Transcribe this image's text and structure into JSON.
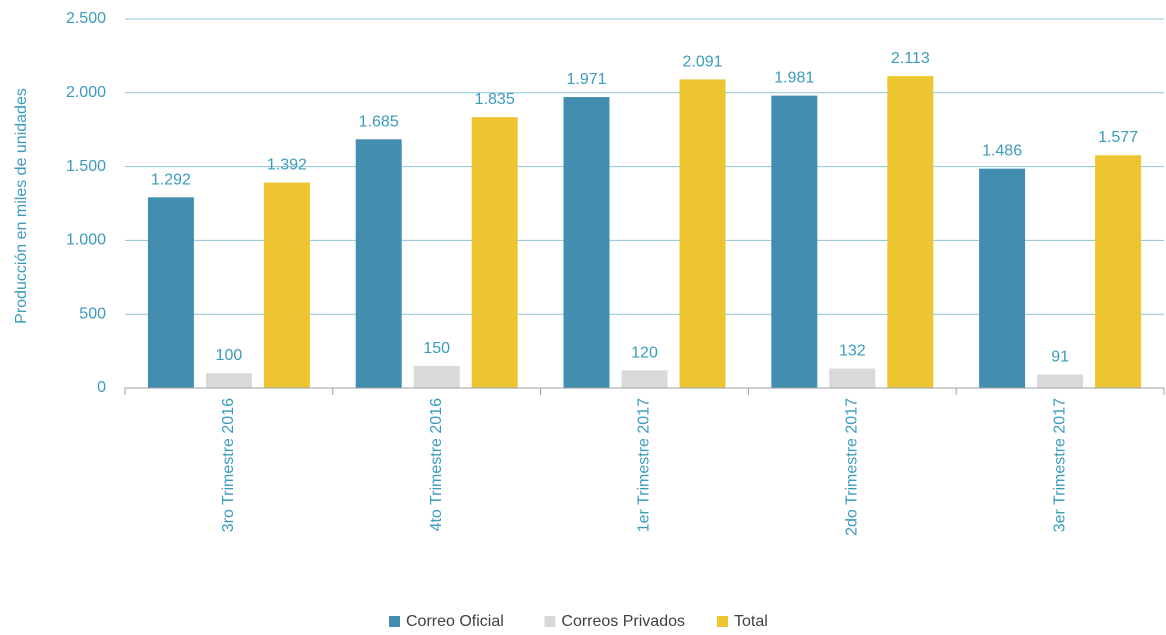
{
  "chart_data": {
    "type": "bar",
    "title": "",
    "xlabel": "",
    "ylabel": "Producción en miles de unidades",
    "ylim": [
      0,
      2500
    ],
    "yticks": [
      0,
      500,
      1000,
      1500,
      2000,
      2500
    ],
    "ytick_labels": [
      "0",
      "500",
      "1.000",
      "1.500",
      "2.000",
      "2.500"
    ],
    "grid": true,
    "legend_position": "bottom-center",
    "categories": [
      "3ro Trimestre 2016",
      "4to Trimestre 2016",
      "1er Trimestre 2017",
      "2do Trimestre 2017",
      "3er Trimestre 2017"
    ],
    "series": [
      {
        "name": "Correo Oficial",
        "color": "#428db0",
        "values": [
          1292,
          1685,
          1971,
          1981,
          1486
        ],
        "labels": [
          "1.292",
          "1.685",
          "1.971",
          "1.981",
          "1.486"
        ]
      },
      {
        "name": "Correos Privados",
        "color": "#d9d9d9",
        "values": [
          100,
          150,
          120,
          132,
          91
        ],
        "labels": [
          "100",
          "150",
          "120",
          "132",
          "91"
        ]
      },
      {
        "name": "Total",
        "color": "#ecc530",
        "values": [
          1392,
          1835,
          2091,
          2113,
          1577
        ],
        "labels": [
          "1.392",
          "1.835",
          "2.091",
          "2.113",
          "1.577"
        ]
      }
    ]
  },
  "colors": {
    "text": "#3a9bbd",
    "gridline": "#8fc3d8",
    "axis": "#9aa0a6",
    "legend_text": "#404040"
  }
}
